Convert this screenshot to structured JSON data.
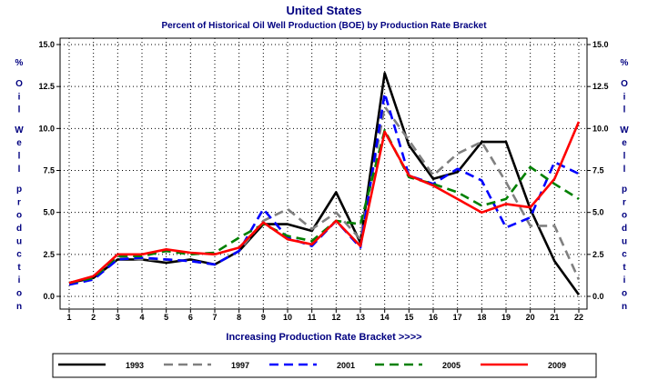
{
  "chart_data": {
    "type": "line",
    "title": "United States",
    "subtitle": "Percent of Historical Oil Well Production (BOE) by Production Rate Bracket",
    "xlabel": "Increasing Production Rate Bracket >>>>",
    "ylabel_unit": "%",
    "ylabel": "Oil Well production",
    "categories": [
      "1",
      "2",
      "3",
      "4",
      "5",
      "6",
      "7",
      "8",
      "9",
      "10",
      "11",
      "12",
      "13",
      "14",
      "15",
      "16",
      "17",
      "18",
      "19",
      "20",
      "21",
      "22"
    ],
    "ylim": [
      0,
      15
    ],
    "yticks": [
      "0.0",
      "2.5",
      "5.0",
      "7.5",
      "10.0",
      "12.5",
      "15.0"
    ],
    "grid": true,
    "legend_position": "bottom",
    "series": [
      {
        "name": "1993",
        "color": "#000000",
        "dash": "solid",
        "values": [
          0.8,
          1.1,
          2.2,
          2.2,
          2.0,
          2.2,
          1.9,
          2.7,
          4.3,
          4.3,
          3.9,
          6.2,
          3.2,
          13.3,
          9.0,
          7.0,
          7.4,
          9.2,
          9.2,
          5.2,
          2.1,
          0.1
        ]
      },
      {
        "name": "1997",
        "color": "#808080",
        "dash": "long",
        "values": [
          0.8,
          1.1,
          2.3,
          2.2,
          2.2,
          2.1,
          1.9,
          2.7,
          4.5,
          5.2,
          4.0,
          5.0,
          3.4,
          11.3,
          9.3,
          7.2,
          8.5,
          9.2,
          6.8,
          4.2,
          4.2,
          1.0
        ]
      },
      {
        "name": "2001",
        "color": "#0000ff",
        "dash": "long",
        "values": [
          0.7,
          1.0,
          2.2,
          2.3,
          2.2,
          2.1,
          1.9,
          2.7,
          5.2,
          3.5,
          3.0,
          4.5,
          2.9,
          12.1,
          7.2,
          6.7,
          7.6,
          6.9,
          4.1,
          4.7,
          8.0,
          7.3
        ]
      },
      {
        "name": "2005",
        "color": "#008000",
        "dash": "long",
        "values": [
          0.8,
          1.1,
          2.4,
          2.4,
          2.7,
          2.5,
          2.6,
          3.5,
          4.3,
          3.6,
          3.3,
          4.5,
          4.3,
          9.9,
          7.1,
          6.7,
          6.2,
          5.4,
          5.8,
          7.7,
          6.7,
          5.8
        ]
      },
      {
        "name": "2009",
        "color": "#ff0000",
        "dash": "solid",
        "values": [
          0.8,
          1.2,
          2.5,
          2.5,
          2.8,
          2.6,
          2.5,
          2.9,
          4.4,
          3.4,
          3.1,
          4.5,
          3.0,
          9.8,
          7.2,
          6.6,
          5.8,
          5.0,
          5.5,
          5.3,
          7.0,
          10.4
        ]
      }
    ]
  }
}
